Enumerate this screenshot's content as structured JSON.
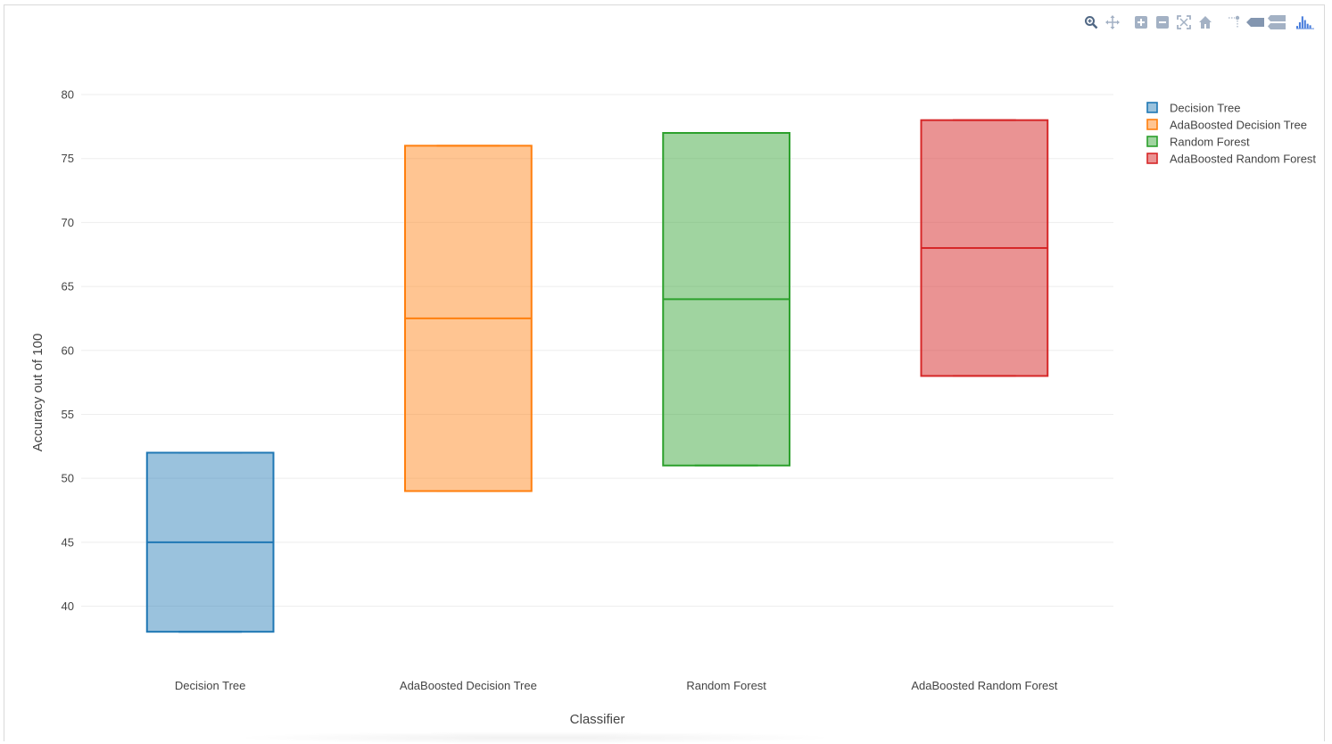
{
  "modebar": {
    "buttons": [
      {
        "name": "zoom-icon",
        "title": "Zoom"
      },
      {
        "name": "pan-icon",
        "title": "Pan"
      },
      {
        "name": "zoom-in-icon",
        "title": "Zoom in"
      },
      {
        "name": "zoom-out-icon",
        "title": "Zoom out"
      },
      {
        "name": "autoscale-icon",
        "title": "Autoscale"
      },
      {
        "name": "reset-axes-icon",
        "title": "Reset axes"
      },
      {
        "name": "spike-lines-icon",
        "title": "Toggle Spike Lines"
      },
      {
        "name": "hover-closest-icon",
        "title": "Show closest data on hover"
      },
      {
        "name": "hover-compare-icon",
        "title": "Compare data on hover"
      },
      {
        "name": "plotly-logo-icon",
        "title": "Produced with Plotly"
      }
    ]
  },
  "chart_data": {
    "type": "box",
    "title": "",
    "xlabel": "Classifier",
    "ylabel": "Accuracy out of 100",
    "ylim": [
      36.2,
      80
    ],
    "yticks": [
      40,
      45,
      50,
      55,
      60,
      65,
      70,
      75,
      80
    ],
    "grid": true,
    "legend_position": "top-right",
    "categories": [
      "Decision Tree",
      "AdaBoosted Decision Tree",
      "Random Forest",
      "AdaBoosted Random Forest"
    ],
    "series": [
      {
        "name": "Decision Tree",
        "color": "#1f77b4",
        "fill": "rgba(31,119,180,0.45)",
        "min": 38,
        "q1": 38,
        "median": 45,
        "q3": 52,
        "max": 52
      },
      {
        "name": "AdaBoosted Decision Tree",
        "color": "#ff7f0e",
        "fill": "rgba(255,127,14,0.45)",
        "min": 49,
        "q1": 49,
        "median": 62.5,
        "q3": 76,
        "max": 76
      },
      {
        "name": "Random Forest",
        "color": "#2ca02c",
        "fill": "rgba(44,160,44,0.45)",
        "min": 51,
        "q1": 51,
        "median": 64,
        "q3": 77,
        "max": 77
      },
      {
        "name": "AdaBoosted Random Forest",
        "color": "#d62728",
        "fill": "rgba(214,39,40,0.5)",
        "min": 58,
        "q1": 58,
        "median": 68,
        "q3": 78,
        "max": 78
      }
    ]
  }
}
